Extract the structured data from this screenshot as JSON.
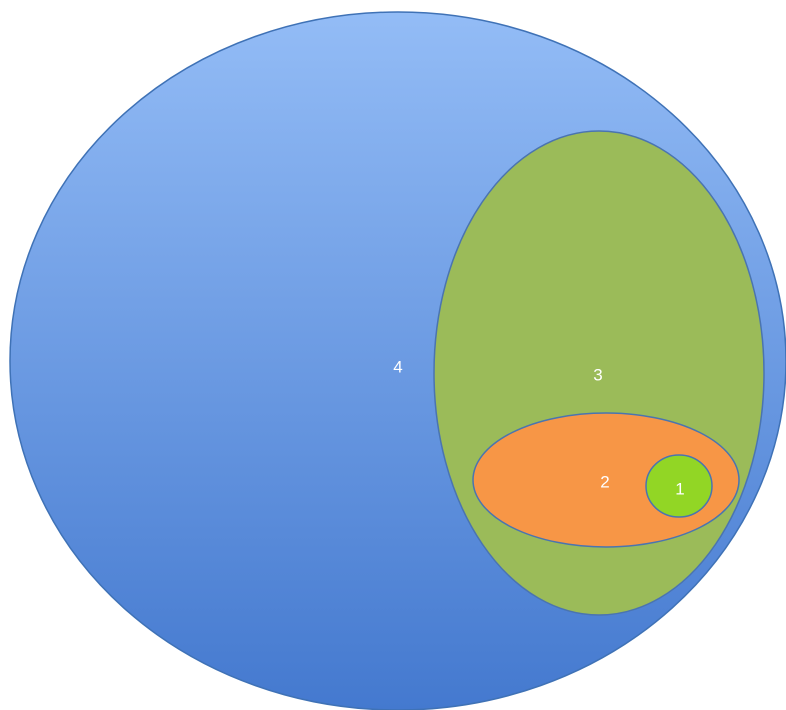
{
  "diagram": {
    "sets": [
      {
        "id": "set-4",
        "label": "4",
        "color_top": "#93bcf6",
        "color_bottom": "#4479cf",
        "stroke": "#3f72b6"
      },
      {
        "id": "set-3",
        "label": "3",
        "color": "#9bbb59",
        "stroke": "#4a74b0"
      },
      {
        "id": "set-2",
        "label": "2",
        "color": "#f79646",
        "stroke": "#4a74b0"
      },
      {
        "id": "set-1",
        "label": "1",
        "color": "#92d625",
        "stroke": "#4a74b0"
      }
    ]
  }
}
